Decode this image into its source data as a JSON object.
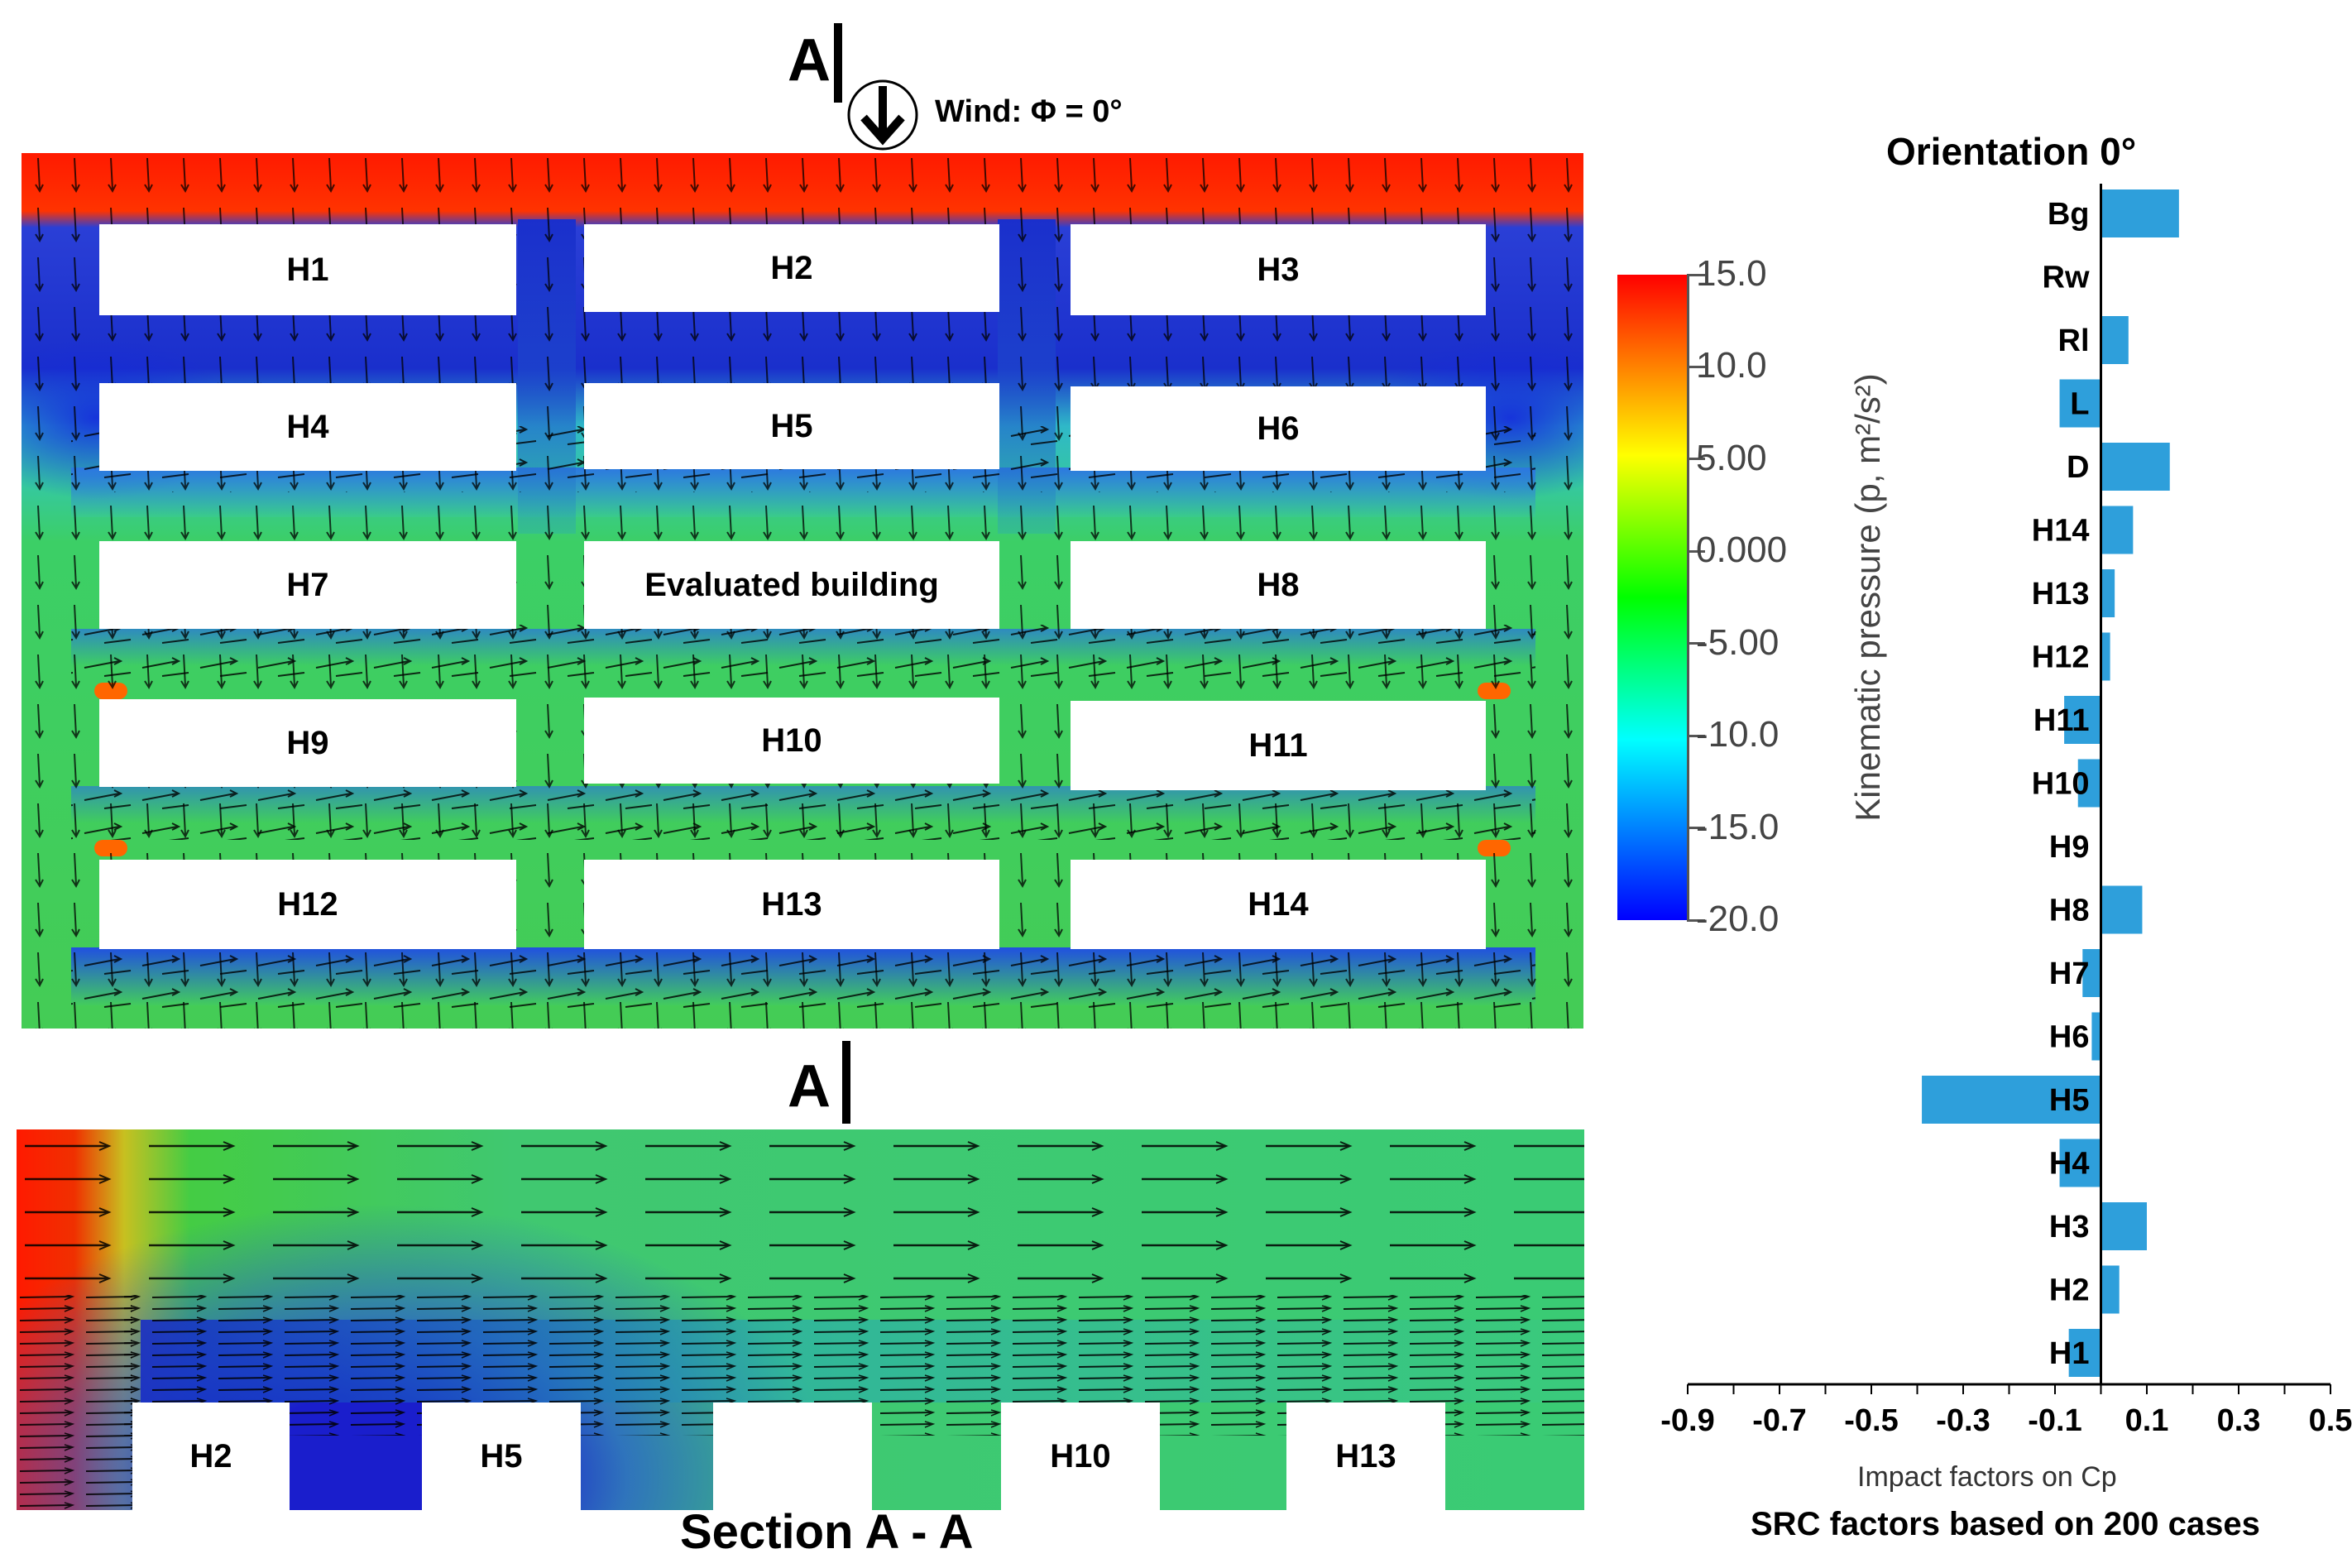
{
  "markers": {
    "section_letter_top": "A",
    "section_letter_mid": "A",
    "wind_label": "Wind: Φ = 0°",
    "section_title": "Section A - A"
  },
  "plan_buildings": [
    {
      "id": "h1",
      "label": "H1"
    },
    {
      "id": "h2",
      "label": "H2"
    },
    {
      "id": "h3",
      "label": "H3"
    },
    {
      "id": "h4",
      "label": "H4"
    },
    {
      "id": "h5",
      "label": "H5"
    },
    {
      "id": "h6",
      "label": "H6"
    },
    {
      "id": "h7",
      "label": "H7"
    },
    {
      "id": "eval",
      "label": "Evaluated building"
    },
    {
      "id": "h8",
      "label": "H8"
    },
    {
      "id": "h9",
      "label": "H9"
    },
    {
      "id": "h10",
      "label": "H10"
    },
    {
      "id": "h11",
      "label": "H11"
    },
    {
      "id": "h12",
      "label": "H12"
    },
    {
      "id": "h13",
      "label": "H13"
    },
    {
      "id": "h14",
      "label": "H14"
    }
  ],
  "section_buildings": [
    "H2",
    "H5",
    "H10",
    "H13"
  ],
  "colorbar": {
    "title": "Kinematic pressure (p, m²/s²)",
    "ticks": [
      "15.0",
      "10.0",
      "5.00",
      "0.000",
      "-5.00",
      "-10.0",
      "-15.0",
      "-20.0"
    ],
    "colors": [
      "#ff0000",
      "#ffff00",
      "#00ff00",
      "#00ffff",
      "#0000ff"
    ]
  },
  "colors": {
    "bar": "#2e9fdb",
    "high_pressure": "#ff1a00",
    "low_pressure": "#1a1acc",
    "mid_pressure": "#33cc55"
  },
  "chart_data": {
    "type": "bar",
    "orientation": "horizontal",
    "title": "Orientation 0°",
    "xlabel": "Impact factors on Cp",
    "caption": "SRC factors based on 200 cases",
    "categories": [
      "Bg",
      "Rw",
      "Rl",
      "L",
      "D",
      "H14",
      "H13",
      "H12",
      "H11",
      "H10",
      "H9",
      "H8",
      "H7",
      "H6",
      "H5",
      "H4",
      "H3",
      "H2",
      "H1"
    ],
    "values": [
      0.17,
      0.0,
      0.06,
      -0.09,
      0.15,
      0.07,
      0.03,
      0.02,
      -0.08,
      -0.05,
      0.0,
      0.09,
      -0.04,
      -0.02,
      -0.39,
      -0.09,
      0.1,
      0.04,
      -0.07
    ],
    "highlighted": [
      "L",
      "H5"
    ],
    "xlim": [
      -0.9,
      0.5
    ],
    "xticks": [
      "-0.9",
      "-0.7",
      "-0.5",
      "-0.3",
      "-0.1",
      "0.1",
      "0.3",
      "0.5"
    ]
  }
}
